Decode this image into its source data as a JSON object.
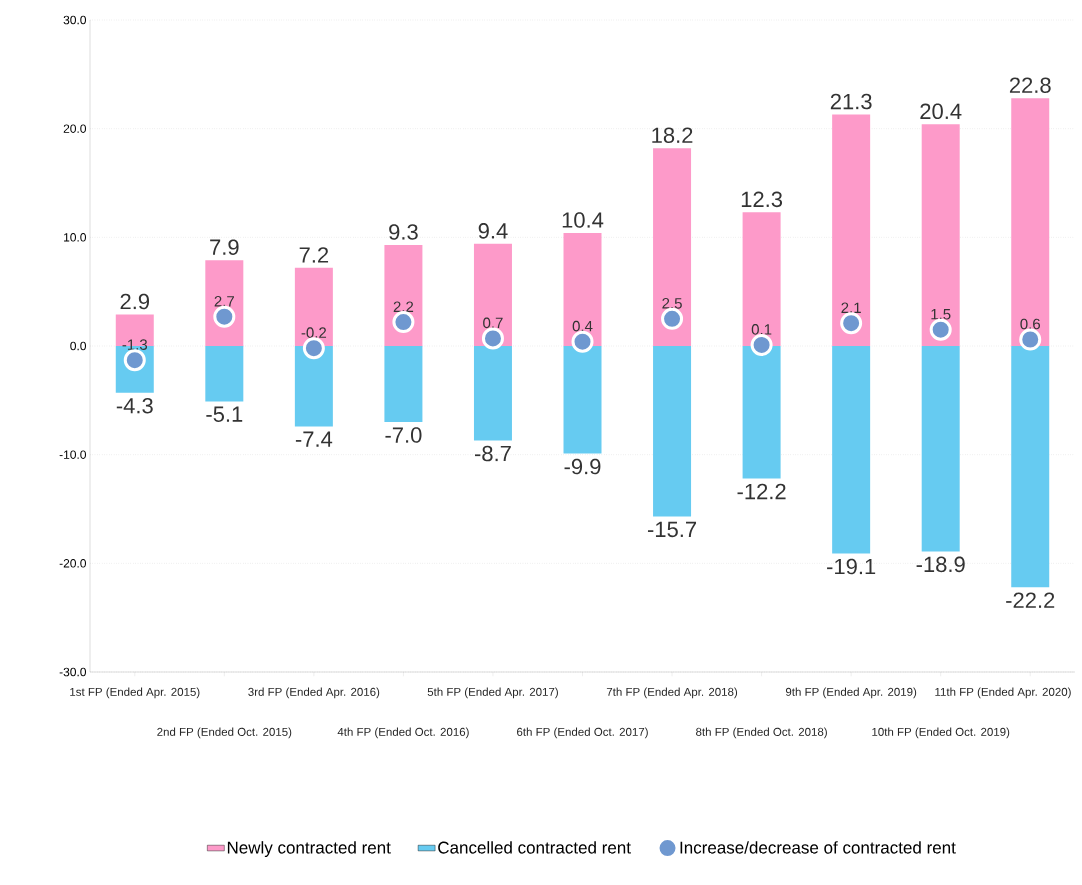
{
  "chart_data": {
    "type": "bar",
    "categories": [
      "1st FP (Ended Apr. 2015)",
      "2nd FP (Ended Oct. 2015)",
      "3rd FP (Ended Apr. 2016)",
      "4th FP (Ended Oct. 2016)",
      "5th FP (Ended Apr. 2017)",
      "6th FP (Ended Oct. 2017)",
      "7th FP (Ended Apr. 2018)",
      "8th FP (Ended Oct. 2018)",
      "9th FP (Ended Apr. 2019)",
      "10th FP (Ended Oct. 2019)",
      "11th FP (Ended Apr. 2020)"
    ],
    "series": [
      {
        "name": "Newly contracted rent",
        "color": "#fd9ac9",
        "values": [
          2.9,
          7.9,
          7.2,
          9.3,
          9.4,
          10.4,
          18.2,
          12.3,
          21.3,
          20.4,
          22.8
        ],
        "value_labels": [
          "2.9",
          "7.9",
          "7.2",
          "9.3",
          "9.4",
          "10.4",
          "18.2",
          "12.3",
          "21.3",
          "20.4",
          "22.8"
        ]
      },
      {
        "name": "Cancelled contracted rent",
        "color": "#66cbf1",
        "values": [
          -4.3,
          -5.1,
          -7.4,
          -7.0,
          -8.7,
          -9.9,
          -15.7,
          -12.2,
          -19.1,
          -18.9,
          -22.2
        ],
        "value_labels": [
          "-4.3",
          "-5.1",
          "-7.4",
          "-7.0",
          "-8.7",
          "-9.9",
          "-15.7",
          "-12.2",
          "-19.1",
          "-18.9",
          "-22.2"
        ]
      },
      {
        "name": "Increase/decrease of contracted rent",
        "type": "scatter",
        "color": "#6f98d0",
        "values": [
          -1.3,
          2.7,
          -0.2,
          2.2,
          0.7,
          0.4,
          2.5,
          0.1,
          2.1,
          1.5,
          0.6
        ],
        "value_labels": [
          "-1.3",
          "2.7",
          "-0.2",
          "2.2",
          "0.7",
          "0.4",
          "2.5",
          "0.1",
          "2.1",
          "1.5",
          "0.6"
        ]
      }
    ],
    "ylim": [
      -30,
      30
    ],
    "yticks": [
      {
        "value": -30,
        "label": "-30.0"
      },
      {
        "value": -20,
        "label": "-20.0"
      },
      {
        "value": -10,
        "label": "-10.0"
      },
      {
        "value": 0,
        "label": "0.0"
      },
      {
        "value": 10,
        "label": "10.0"
      },
      {
        "value": 20,
        "label": "20.0"
      },
      {
        "value": 30,
        "label": "30.0"
      }
    ],
    "stacked": true,
    "grid": "y",
    "legend": "bottom"
  }
}
